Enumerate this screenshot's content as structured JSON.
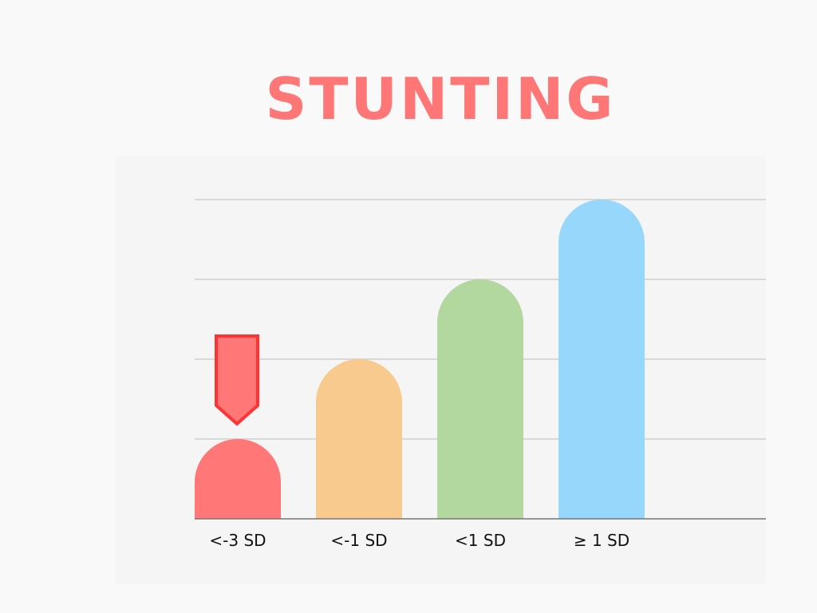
{
  "chart_data": {
    "type": "bar",
    "title": "STUNTING",
    "categories": [
      "<-3 SD",
      "<-1 SD",
      "<1 SD",
      "≥ 1 SD"
    ],
    "values": [
      1,
      2,
      3,
      4
    ],
    "ylim": [
      0,
      4
    ],
    "grid": true,
    "colors": [
      "#ff7777",
      "#f8ca8e",
      "#b2d79f",
      "#98d7fc"
    ],
    "highlight": {
      "category_index": 0,
      "marker": "down-arrow",
      "color": "#ff7777",
      "stroke": "#ff3333"
    }
  }
}
